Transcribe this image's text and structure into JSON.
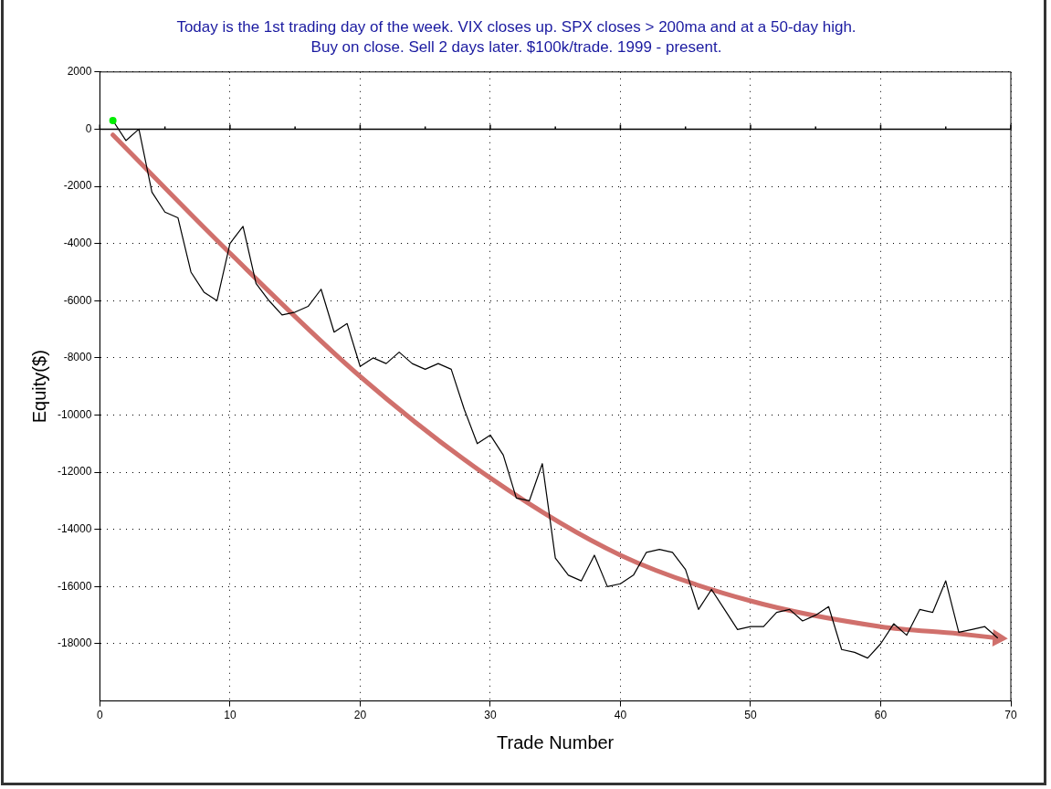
{
  "chart_data": {
    "type": "line",
    "title": "Today is the 1st trading day of the week. VIX closes up. SPX closes > 200ma and at a 50-day high.",
    "subtitle": "Buy on close. Sell 2 days later. $100k/trade. 1999 - present.",
    "xlabel": "Trade Number",
    "ylabel": "Equity($)",
    "series": [
      {
        "color": "#000000",
        "x": [
          1,
          2,
          3,
          4,
          5,
          6,
          7,
          8,
          9,
          10,
          11,
          12,
          13,
          14,
          15,
          16,
          17,
          18,
          19,
          20,
          21,
          22,
          23,
          24,
          25,
          26,
          27,
          28,
          29,
          30,
          31,
          32,
          33,
          34,
          35,
          36,
          37,
          38,
          39,
          40,
          41,
          42,
          43,
          44,
          45,
          46,
          47,
          48,
          49,
          50,
          51,
          52,
          53,
          54,
          55,
          56,
          57,
          58,
          59,
          60,
          61,
          62,
          63,
          64,
          65,
          66,
          67,
          68,
          69
        ],
        "values": [
          300,
          -400,
          0,
          -2200,
          -2900,
          -3100,
          -5000,
          -5700,
          -6000,
          -4000,
          -3400,
          -5400,
          -6000,
          -6500,
          -6400,
          -6200,
          -5600,
          -7100,
          -6800,
          -8300,
          -8000,
          -8200,
          -7800,
          -8200,
          -8400,
          -8200,
          -8400,
          -9800,
          -11000,
          -10700,
          -11400,
          -12900,
          -13000,
          -11700,
          -15000,
          -15600,
          -15800,
          -14900,
          -16000,
          -15900,
          -15600,
          -14800,
          -14700,
          -14800,
          -15400,
          -16800,
          -16100,
          -16800,
          -17500,
          -17400,
          -17400,
          -16900,
          -16800,
          -17200,
          -17000,
          -16700,
          -18200,
          -18300,
          -18500,
          -18000,
          -17300,
          -17700,
          -16800,
          -16900,
          -15800,
          -17600,
          -17500,
          -17400,
          -17800
        ]
      },
      {
        "type": "scatter",
        "color": "#00ee00",
        "x": [
          1
        ],
        "values": [
          300
        ]
      },
      {
        "type": "line",
        "color": "#d0706c",
        "x": [
          1,
          10,
          20,
          30,
          40,
          50,
          60,
          66,
          69
        ],
        "values": [
          -200,
          -4340,
          -8650,
          -12200,
          -14900,
          -16500,
          -17400,
          -17650,
          -17800
        ]
      }
    ],
    "xlim": [
      0,
      70
    ],
    "xticks": [
      0,
      10,
      20,
      30,
      40,
      50,
      60,
      70
    ],
    "ylim": [
      -20000,
      2000
    ],
    "yticks": [
      -18000,
      -16000,
      -14000,
      -12000,
      -10000,
      -8000,
      -6000,
      -4000,
      -2000,
      0,
      2000
    ],
    "grid": true,
    "legend": false,
    "line_style": "solid",
    "ref_lines": [
      {
        "axis": "y",
        "value": 0,
        "color": "#000000"
      }
    ]
  }
}
